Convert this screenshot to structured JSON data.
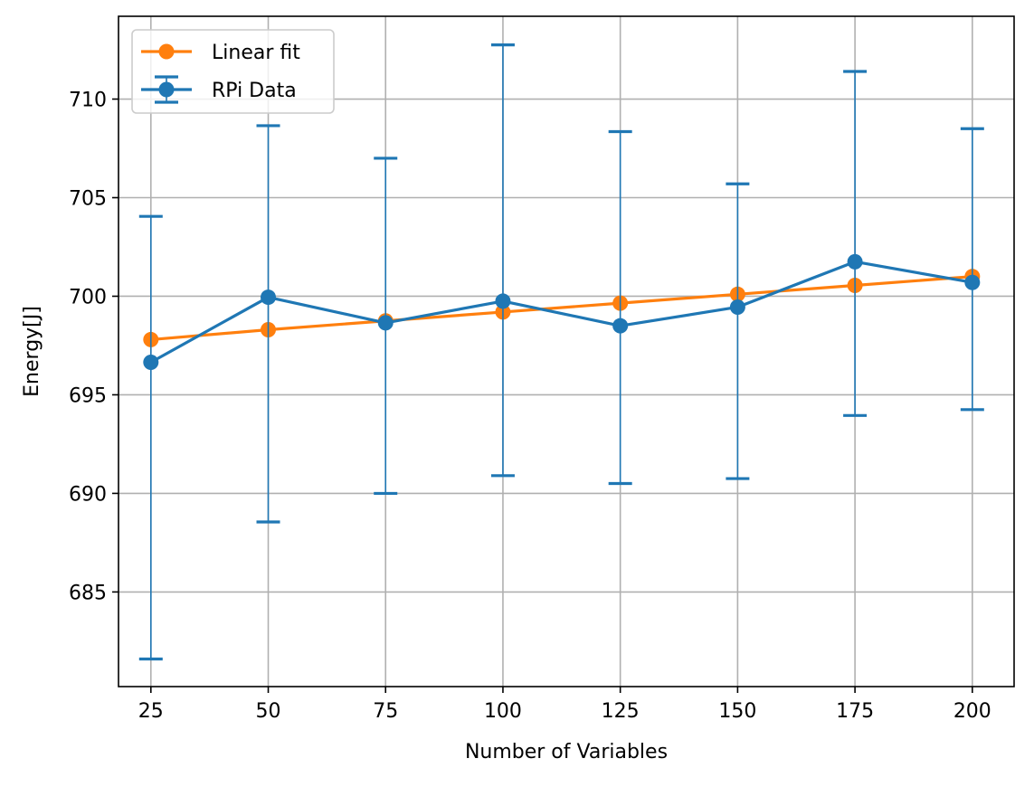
{
  "chart_data": {
    "type": "line",
    "xlabel": "Number of Variables",
    "ylabel": "Energy[J]",
    "xlim": [
      18.1,
      208.9
    ],
    "ylim": [
      680.2,
      714.2
    ],
    "x_ticks": [
      25,
      50,
      75,
      100,
      125,
      150,
      175,
      200
    ],
    "y_ticks": [
      685,
      690,
      695,
      700,
      705,
      710
    ],
    "grid": true,
    "legend_position": "top-left",
    "x": [
      25,
      50,
      75,
      100,
      125,
      150,
      175,
      200
    ],
    "series": [
      {
        "name": "Linear fit",
        "color": "#ff7f0e",
        "marker": "circle",
        "values": [
          697.8,
          698.3,
          698.75,
          699.2,
          699.65,
          700.1,
          700.55,
          701.0
        ]
      },
      {
        "name": "RPi Data",
        "color": "#1f77b4",
        "marker": "circle",
        "errorbars": true,
        "values": [
          696.65,
          699.95,
          698.65,
          699.75,
          698.5,
          699.45,
          701.75,
          700.7
        ],
        "err_low": [
          681.6,
          688.55,
          690.0,
          690.9,
          690.5,
          690.75,
          693.95,
          694.25
        ],
        "err_high": [
          704.05,
          708.65,
          707.0,
          712.75,
          708.35,
          705.7,
          711.4,
          708.5
        ]
      }
    ]
  }
}
